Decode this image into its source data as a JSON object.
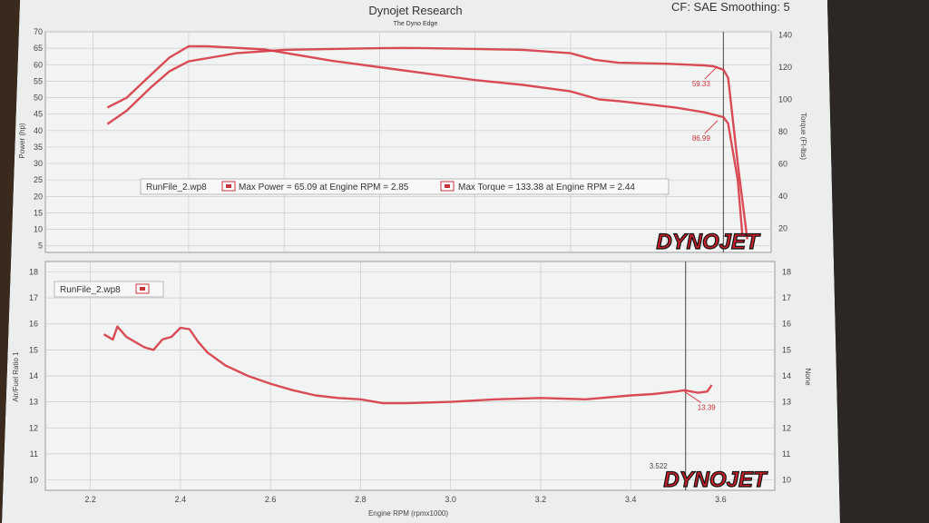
{
  "header": {
    "title": "Dynojet Research",
    "subtitle": "The Dyno Edge",
    "settings": "CF: SAE Smoothing: 5"
  },
  "logo": {
    "text": "DYNOJET"
  },
  "colors": {
    "trace": "#d63a44",
    "logo_red": "#c8202a",
    "paper": "#eceeee",
    "grid": "#c9cccd"
  },
  "chart_data": [
    {
      "type": "line",
      "name": "power-torque",
      "xlim": [
        2.1,
        3.62
      ],
      "ylabel": "Power (hp)",
      "ylabel_right": "Torque (Ft-lbs)",
      "ylim": [
        3,
        70
      ],
      "ylim_right": [
        5,
        142
      ],
      "yticks": [
        5,
        10,
        15,
        20,
        25,
        30,
        35,
        40,
        45,
        50,
        55,
        60,
        65,
        70
      ],
      "yticks_right": [
        20,
        40,
        60,
        80,
        100,
        120,
        140
      ],
      "grid": true,
      "legend": {
        "run": "RunFile_2.wp8",
        "power": "Max Power = 65.09 at Engine RPM = 2.85",
        "torque": "Max Torque = 133.38 at Engine RPM = 2.44"
      },
      "cursor_x": 3.52,
      "series": [
        {
          "axis": "right",
          "x": [
            2.23,
            2.27,
            2.32,
            2.36,
            2.4,
            2.44,
            2.5,
            2.56,
            2.6,
            2.7,
            2.8,
            2.9,
            3.0,
            3.1,
            3.2,
            3.26,
            3.3,
            3.36,
            3.42,
            3.48,
            3.52,
            3.53,
            3.55,
            3.56
          ],
          "values": [
            95,
            101,
            115,
            126,
            133,
            133,
            132,
            131,
            129,
            124,
            120,
            116,
            112,
            109,
            105,
            100,
            99,
            97,
            95,
            92,
            89,
            85,
            50,
            15
          ]
        },
        {
          "axis": "left",
          "x": [
            2.23,
            2.27,
            2.32,
            2.36,
            2.4,
            2.44,
            2.5,
            2.6,
            2.7,
            2.8,
            2.85,
            2.9,
            3.0,
            3.1,
            3.2,
            3.25,
            3.3,
            3.4,
            3.48,
            3.5,
            3.52,
            3.53,
            3.55,
            3.57
          ],
          "values": [
            42,
            46,
            53,
            58,
            61,
            62,
            63.5,
            64.5,
            64.8,
            65.0,
            65.09,
            65.0,
            64.8,
            64.5,
            63.5,
            61.5,
            60.6,
            60.3,
            59.8,
            59.5,
            58.5,
            56,
            30,
            7
          ]
        }
      ],
      "annotations": [
        {
          "text": "59.33",
          "x": 3.5,
          "y": 59.5
        },
        {
          "text": "86.99",
          "x": 3.5,
          "y": 43
        }
      ]
    },
    {
      "type": "line",
      "name": "air-fuel",
      "xlim": [
        2.1,
        3.72
      ],
      "xlabel": "Engine RPM (rpmx1000)",
      "ylabel": "Air/Fuel Ratio 1",
      "ylabel_right": "None",
      "ylim": [
        9.6,
        18.4
      ],
      "xticks": [
        2.2,
        2.4,
        2.6,
        2.8,
        3.0,
        3.2,
        3.4,
        3.6
      ],
      "yticks": [
        10,
        11,
        12,
        13,
        14,
        15,
        16,
        17,
        18
      ],
      "grid": true,
      "legend": {
        "run": "RunFile_2.wp8"
      },
      "cursor_x": 3.522,
      "cursor_label": "3.522",
      "series": [
        {
          "x": [
            2.23,
            2.25,
            2.26,
            2.28,
            2.3,
            2.32,
            2.34,
            2.36,
            2.38,
            2.4,
            2.42,
            2.44,
            2.46,
            2.5,
            2.55,
            2.6,
            2.65,
            2.7,
            2.75,
            2.8,
            2.85,
            2.9,
            3.0,
            3.05,
            3.1,
            3.2,
            3.3,
            3.4,
            3.45,
            3.5,
            3.52,
            3.55,
            3.57,
            3.58
          ],
          "values": [
            15.6,
            15.4,
            15.9,
            15.5,
            15.3,
            15.1,
            15.0,
            15.4,
            15.5,
            15.85,
            15.8,
            15.3,
            14.9,
            14.4,
            14.0,
            13.7,
            13.45,
            13.25,
            13.15,
            13.1,
            12.95,
            12.95,
            13.0,
            13.05,
            13.1,
            13.15,
            13.1,
            13.25,
            13.3,
            13.4,
            13.45,
            13.35,
            13.4,
            13.65
          ]
        }
      ],
      "annotations": [
        {
          "text": "13.39",
          "x": 3.52,
          "y": 13.39
        }
      ]
    }
  ]
}
